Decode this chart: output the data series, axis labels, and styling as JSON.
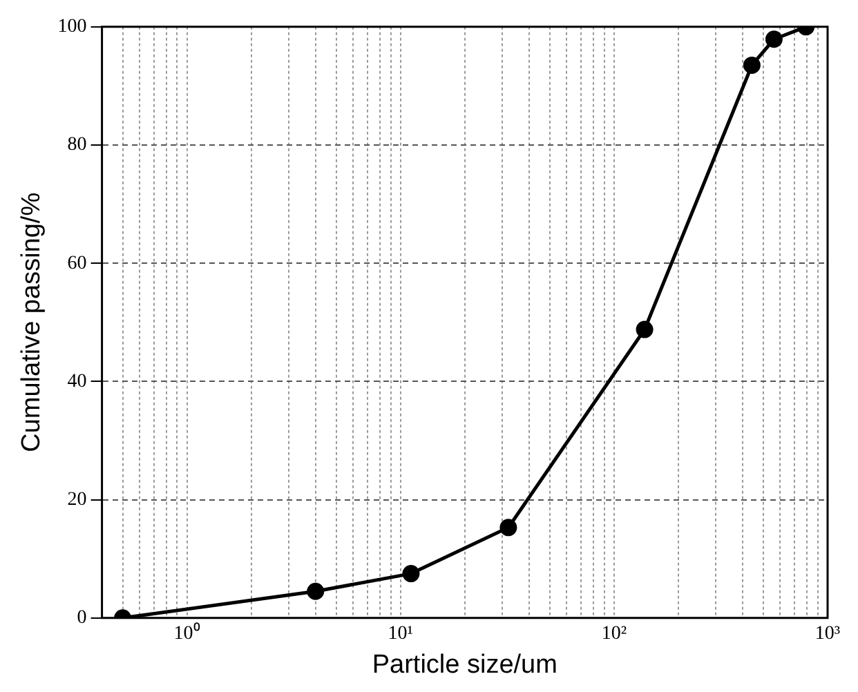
{
  "chart_data": {
    "type": "line",
    "xlabel": "Particle size/um",
    "ylabel": "Cumulative passing/%",
    "x": [
      0.5,
      4,
      11.2,
      32,
      139,
      442,
      561,
      792
    ],
    "series": [
      {
        "color": "#000000",
        "values": [
          0,
          4.5,
          7.5,
          15.3,
          48.8,
          93.5,
          97.9,
          100
        ]
      }
    ],
    "xlim": [
      0.4,
      1000
    ],
    "xticks": [
      {
        "value": 0.4,
        "label": null
      },
      {
        "value": 0.5,
        "label": null
      },
      {
        "value": 0.6,
        "label": null
      },
      {
        "value": 0.7,
        "label": null
      },
      {
        "value": 0.8,
        "label": null
      },
      {
        "value": 0.9,
        "label": null
      },
      {
        "value": 1,
        "label": "10⁰"
      },
      {
        "value": 2,
        "label": null
      },
      {
        "value": 3,
        "label": null
      },
      {
        "value": 4,
        "label": null
      },
      {
        "value": 5,
        "label": null
      },
      {
        "value": 6,
        "label": null
      },
      {
        "value": 7,
        "label": null
      },
      {
        "value": 8,
        "label": null
      },
      {
        "value": 9,
        "label": null
      },
      {
        "value": 10,
        "label": "10¹"
      },
      {
        "value": 20,
        "label": null
      },
      {
        "value": 30,
        "label": null
      },
      {
        "value": 40,
        "label": null
      },
      {
        "value": 50,
        "label": null
      },
      {
        "value": 60,
        "label": null
      },
      {
        "value": 70,
        "label": null
      },
      {
        "value": 80,
        "label": null
      },
      {
        "value": 90,
        "label": null
      },
      {
        "value": 100,
        "label": "10²"
      },
      {
        "value": 200,
        "label": null
      },
      {
        "value": 300,
        "label": null
      },
      {
        "value": 400,
        "label": null
      },
      {
        "value": 500,
        "label": null
      },
      {
        "value": 600,
        "label": null
      },
      {
        "value": 700,
        "label": null
      },
      {
        "value": 800,
        "label": null
      },
      {
        "value": 900,
        "label": null
      },
      {
        "value": 1000,
        "label": "10³"
      }
    ],
    "ylim": [
      0,
      100
    ],
    "yticks": [
      0,
      20,
      40,
      60,
      80,
      100
    ],
    "log": "x",
    "grid": true,
    "legend": false,
    "marker": "circle",
    "line_style": "solid"
  }
}
